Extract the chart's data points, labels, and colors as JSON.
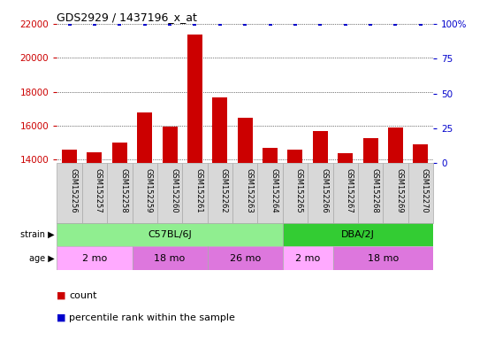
{
  "title": "GDS2929 / 1437196_x_at",
  "samples": [
    "GSM152256",
    "GSM152257",
    "GSM152258",
    "GSM152259",
    "GSM152260",
    "GSM152261",
    "GSM152262",
    "GSM152263",
    "GSM152264",
    "GSM152265",
    "GSM152266",
    "GSM152267",
    "GSM152268",
    "GSM152269",
    "GSM152270"
  ],
  "counts": [
    14620,
    14430,
    15020,
    16800,
    15950,
    21350,
    17650,
    16450,
    14700,
    14620,
    15680,
    14380,
    15300,
    15900,
    14900
  ],
  "percentile_ranks": [
    100,
    100,
    100,
    100,
    100,
    100,
    100,
    100,
    100,
    100,
    100,
    100,
    100,
    100,
    100
  ],
  "bar_color": "#CC0000",
  "dot_color": "#0000CC",
  "ylim_left": [
    13800,
    22000
  ],
  "ylim_right": [
    0,
    100
  ],
  "yticks_left": [
    14000,
    16000,
    18000,
    20000,
    22000
  ],
  "yticks_right": [
    0,
    25,
    50,
    75,
    100
  ],
  "strain_labels": [
    {
      "label": "C57BL/6J",
      "start": 0,
      "end": 8,
      "color": "#90EE90"
    },
    {
      "label": "DBA/2J",
      "start": 9,
      "end": 14,
      "color": "#33CC33"
    }
  ],
  "age_labels": [
    {
      "label": "2 mo",
      "start": 0,
      "end": 2,
      "color": "#FFAAFF"
    },
    {
      "label": "18 mo",
      "start": 3,
      "end": 5,
      "color": "#DD77DD"
    },
    {
      "label": "26 mo",
      "start": 6,
      "end": 8,
      "color": "#DD77DD"
    },
    {
      "label": "2 mo",
      "start": 9,
      "end": 10,
      "color": "#FFAAFF"
    },
    {
      "label": "18 mo",
      "start": 11,
      "end": 14,
      "color": "#DD77DD"
    }
  ],
  "tick_label_color": "#CC0000",
  "right_tick_color": "#0000CC",
  "background_color": "#FFFFFF",
  "xticklabel_bg": "#D8D8D8"
}
